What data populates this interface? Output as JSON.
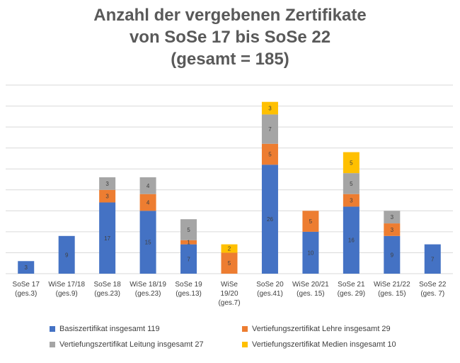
{
  "title_lines": [
    "Anzahl der vergebenen Zertifikate",
    "von SoSe 17 bis SoSe 22",
    "(gesamt = 185)"
  ],
  "colors": {
    "basis": "#4472c4",
    "lehre": "#ed7d31",
    "leitung": "#a5a5a5",
    "medien": "#ffc000",
    "grid": "#d9d9d9",
    "text": "#595959"
  },
  "chart_data": {
    "type": "bar",
    "stacked": true,
    "title": "Anzahl der vergebenen Zertifikate von SoSe 17 bis SoSe 22 (gesamt = 185)",
    "categories": [
      [
        "SoSe 17",
        "(ges.3)"
      ],
      [
        "WiSe 17/18",
        "(ges.9)"
      ],
      [
        "SoSe 18",
        "(ges.23)"
      ],
      [
        "WiSe 18/19",
        "(ges.23)"
      ],
      [
        "SoSe 19",
        "(ges.13)"
      ],
      [
        "WiSe",
        "19/20",
        "(ges.7)"
      ],
      [
        "SoSe 20",
        "(ges.41)"
      ],
      [
        "WiSe 20/21",
        "(ges. 15)"
      ],
      [
        "SoSe 21",
        "(ges. 29)"
      ],
      [
        "WiSe 21/22",
        "(ges. 15)"
      ],
      [
        "SoSe 22",
        "(ges. 7)"
      ]
    ],
    "series": [
      {
        "name": "Basiszertifikat insgesamt 119",
        "key": "basis",
        "values": [
          3,
          9,
          17,
          15,
          7,
          null,
          26,
          10,
          16,
          9,
          7
        ]
      },
      {
        "name": "Vertiefungszertifikat Lehre insgesamt 29",
        "key": "lehre",
        "values": [
          null,
          null,
          3,
          4,
          1,
          5,
          5,
          5,
          3,
          3,
          null
        ]
      },
      {
        "name": "Vertiefungszertifikat Leitung insgesamt 27",
        "key": "leitung",
        "values": [
          null,
          null,
          3,
          4,
          5,
          null,
          7,
          null,
          5,
          3,
          null
        ]
      },
      {
        "name": "Vertiefungszertifikat Medien insgesamt 10",
        "key": "medien",
        "values": [
          null,
          null,
          null,
          null,
          null,
          2,
          3,
          null,
          5,
          null,
          null
        ]
      }
    ],
    "ylim": [
      0,
      45
    ],
    "grid": true,
    "legend_position": "bottom"
  }
}
